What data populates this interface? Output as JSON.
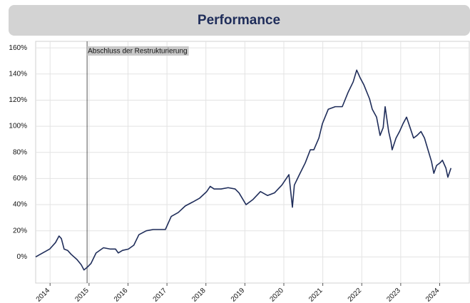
{
  "chart_data": {
    "type": "line",
    "title": "Performance",
    "xlim": [
      2013.63,
      2024.76
    ],
    "xticks": [
      2014,
      2015,
      2016,
      2017,
      2018,
      2019,
      2020,
      2021,
      2022,
      2023,
      2024
    ],
    "ylim": [
      -20,
      165
    ],
    "yticks": [
      {
        "value": 0,
        "label": "0%"
      },
      {
        "value": 20,
        "label": "20%"
      },
      {
        "value": 40,
        "label": "40%"
      },
      {
        "value": 60,
        "label": "60%"
      },
      {
        "value": 80,
        "label": "80%"
      },
      {
        "value": 100,
        "label": "100%"
      },
      {
        "value": 120,
        "label": "120%"
      },
      {
        "value": 140,
        "label": "140%"
      },
      {
        "value": 160,
        "label": "160%"
      }
    ],
    "grid": true,
    "annotation": {
      "text": "Abschluss der Restrukturierung",
      "x": 2014.95
    },
    "series": [
      {
        "color": "#1f2d5a",
        "x": [
          2013.63,
          2013.81,
          2013.99,
          2014.14,
          2014.23,
          2014.29,
          2014.36,
          2014.45,
          2014.54,
          2014.69,
          2014.8,
          2014.87,
          2014.95,
          2015.05,
          2015.18,
          2015.37,
          2015.55,
          2015.68,
          2015.75,
          2015.86,
          2016.01,
          2016.15,
          2016.28,
          2016.47,
          2016.65,
          2016.83,
          2016.96,
          2017.11,
          2017.29,
          2017.47,
          2017.66,
          2017.84,
          2018.02,
          2018.11,
          2018.21,
          2018.39,
          2018.57,
          2018.75,
          2018.85,
          2019.03,
          2019.21,
          2019.4,
          2019.58,
          2019.76,
          2019.95,
          2020.13,
          2020.22,
          2020.27,
          2020.4,
          2020.55,
          2020.68,
          2020.77,
          2020.9,
          2020.99,
          2021.14,
          2021.32,
          2021.5,
          2021.65,
          2021.78,
          2021.87,
          2021.96,
          2022.05,
          2022.2,
          2022.27,
          2022.38,
          2022.47,
          2022.55,
          2022.6,
          2022.69,
          2022.75,
          2022.78,
          2022.88,
          2022.97,
          2023.06,
          2023.15,
          2023.24,
          2023.33,
          2023.42,
          2023.52,
          2023.61,
          2023.7,
          2023.79,
          2023.85,
          2023.92,
          2024.01,
          2024.07,
          2024.16,
          2024.21,
          2024.29
        ],
        "values": [
          0,
          3,
          6,
          11,
          16,
          14,
          6,
          5,
          2,
          -2,
          -6,
          -10,
          -8,
          -5,
          3,
          7,
          6,
          6,
          3,
          5,
          6,
          9,
          17,
          20,
          21,
          21,
          21,
          31,
          34,
          39,
          42,
          45,
          50,
          54,
          52,
          52,
          53,
          52,
          49,
          40,
          44,
          50,
          47,
          49,
          55,
          63,
          38,
          55,
          63,
          72,
          82,
          82,
          91,
          102,
          113,
          115,
          115,
          126,
          134,
          143,
          137,
          132,
          121,
          113,
          107,
          93,
          99,
          115,
          96,
          88,
          82,
          91,
          96,
          102,
          107,
          99,
          91,
          93,
          96,
          91,
          82,
          73,
          64,
          70,
          72,
          74,
          68,
          61,
          68
        ]
      }
    ]
  }
}
